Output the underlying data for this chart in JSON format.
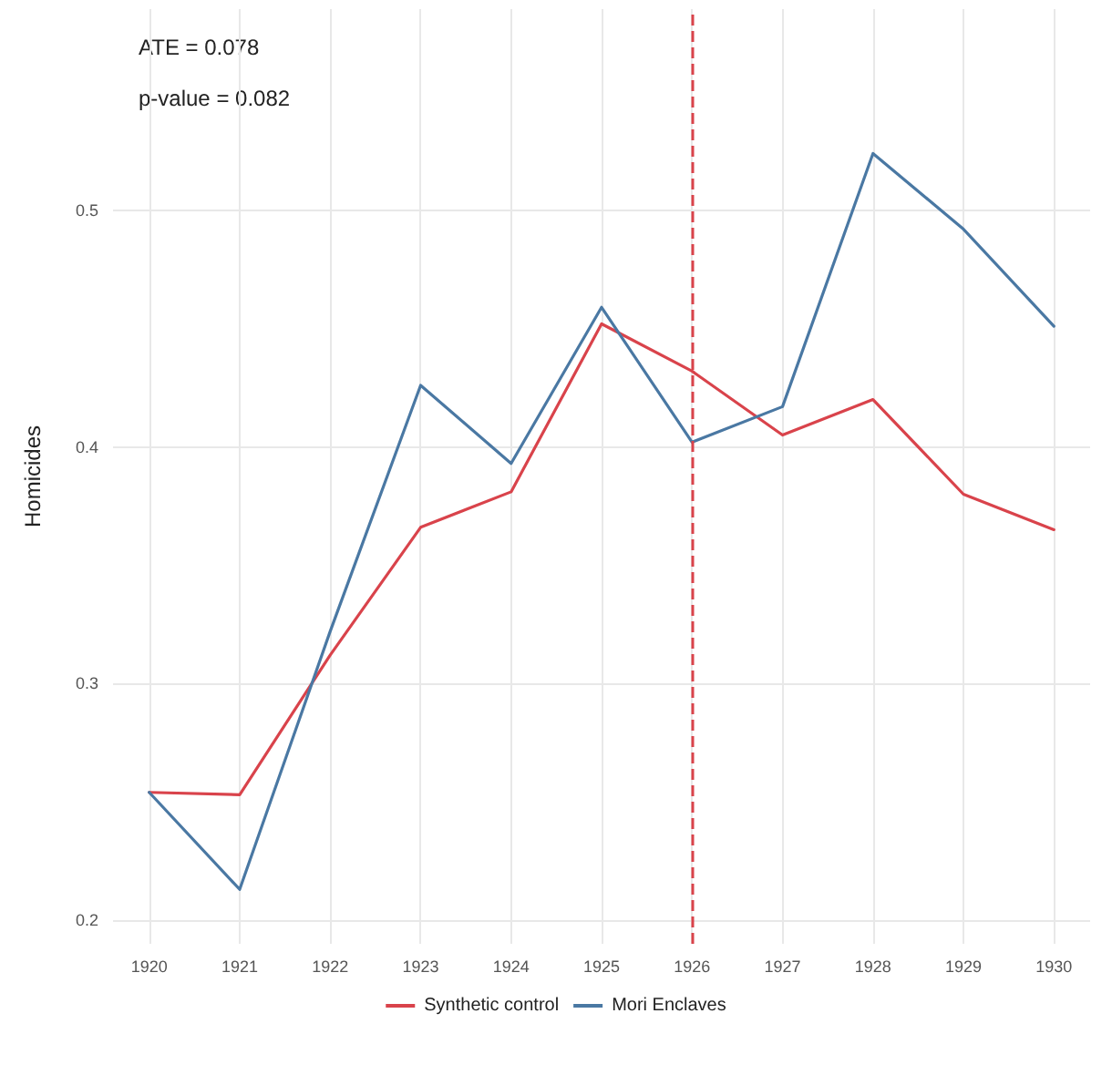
{
  "chart_data": {
    "type": "line",
    "ylabel": "Homicides",
    "x": [
      1920,
      1921,
      1922,
      1923,
      1924,
      1925,
      1926,
      1927,
      1928,
      1929,
      1930
    ],
    "series": [
      {
        "name": "Synthetic control",
        "color": "#d9434b",
        "values": [
          0.254,
          0.253,
          0.312,
          0.366,
          0.381,
          0.452,
          0.432,
          0.405,
          0.42,
          0.38,
          0.365
        ]
      },
      {
        "name": "Mori Enclaves",
        "color": "#4a78a3",
        "values": [
          0.254,
          0.213,
          0.322,
          0.426,
          0.393,
          0.459,
          0.402,
          0.417,
          0.524,
          0.492,
          0.451
        ]
      }
    ],
    "xlim": [
      1919.6,
      1930.4
    ],
    "xticks": [
      1920,
      1921,
      1922,
      1923,
      1924,
      1925,
      1926,
      1927,
      1928,
      1929,
      1930
    ],
    "ylim": [
      0.19,
      0.585
    ],
    "yticks": [
      0.2,
      0.3,
      0.4,
      0.5
    ],
    "ref_lines": [
      {
        "axis": "x",
        "value": 1926,
        "color": "#d9434b",
        "line_style": "dashed"
      }
    ],
    "annotations": [
      "ATE = 0.078",
      "p-value = 0.082"
    ],
    "grid": true,
    "legend": "bottom",
    "line_style": "solid",
    "marker": "none"
  }
}
